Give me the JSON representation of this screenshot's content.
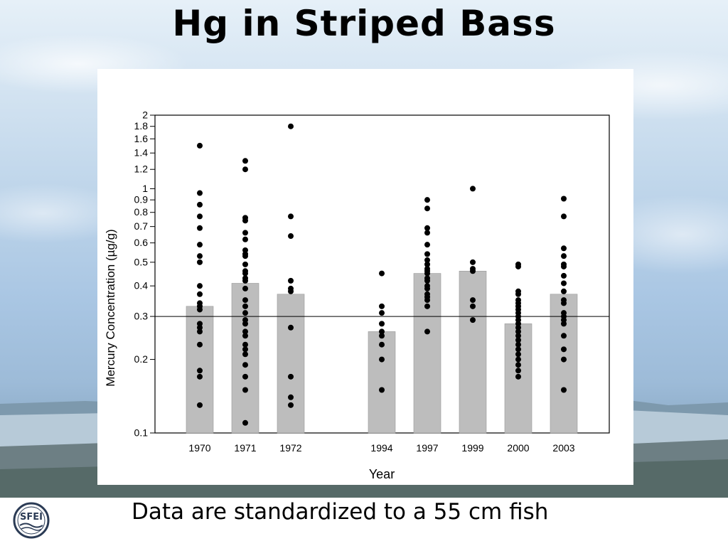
{
  "slide": {
    "title": "Hg in Striped Bass",
    "footnote": "Data are standardized to a 55 cm fish",
    "logo_text": "SFEI"
  },
  "colors": {
    "bar_fill": "#bdbdbd",
    "bar_stroke": "#9a9a9a",
    "point": "#000000",
    "reference_line": "#000000"
  },
  "chart_data": {
    "type": "bar",
    "title": "",
    "xlabel": "Year",
    "ylabel": "Mercury Concentration (µg/g)",
    "yscale": "log",
    "ylim": [
      0.1,
      2
    ],
    "yticks": [
      {
        "value": 0.1,
        "label": "0.1"
      },
      {
        "value": 0.2,
        "label": "0.2"
      },
      {
        "value": 0.3,
        "label": "0.3"
      },
      {
        "value": 0.4,
        "label": "0.4"
      },
      {
        "value": 0.5,
        "label": "0.5"
      },
      {
        "value": 0.6,
        "label": "0.6"
      },
      {
        "value": 0.7,
        "label": "0.7"
      },
      {
        "value": 0.8,
        "label": "0.8"
      },
      {
        "value": 0.9,
        "label": "0.9"
      },
      {
        "value": 1,
        "label": "1"
      },
      {
        "value": 1.2,
        "label": "1.2"
      },
      {
        "value": 1.4,
        "label": "1.4"
      },
      {
        "value": 1.6,
        "label": "1.6"
      },
      {
        "value": 1.8,
        "label": "1.8"
      },
      {
        "value": 2,
        "label": "2"
      }
    ],
    "reference_line": 0.3,
    "grid": false,
    "categories": [
      "1970",
      "1971",
      "1972",
      "1994",
      "1997",
      "1999",
      "2000",
      "2003"
    ],
    "values": [
      0.33,
      0.41,
      0.37,
      0.26,
      0.45,
      0.46,
      0.28,
      0.37
    ],
    "points": [
      [
        1.5,
        0.96,
        0.86,
        0.77,
        0.69,
        0.59,
        0.53,
        0.5,
        0.4,
        0.37,
        0.34,
        0.33,
        0.32,
        0.28,
        0.27,
        0.26,
        0.23,
        0.18,
        0.17,
        0.13
      ],
      [
        1.3,
        1.2,
        0.76,
        0.74,
        0.66,
        0.62,
        0.56,
        0.54,
        0.53,
        0.49,
        0.46,
        0.45,
        0.43,
        0.42,
        0.39,
        0.35,
        0.33,
        0.31,
        0.29,
        0.28,
        0.26,
        0.25,
        0.23,
        0.22,
        0.21,
        0.19,
        0.17,
        0.15,
        0.11
      ],
      [
        1.8,
        0.77,
        0.64,
        0.42,
        0.39,
        0.38,
        0.27,
        0.17,
        0.14,
        0.13
      ],
      [
        0.45,
        0.33,
        0.31,
        0.28,
        0.26,
        0.25,
        0.23,
        0.2,
        0.15
      ],
      [
        0.9,
        0.83,
        0.69,
        0.66,
        0.59,
        0.54,
        0.51,
        0.49,
        0.47,
        0.46,
        0.45,
        0.43,
        0.42,
        0.4,
        0.39,
        0.37,
        0.36,
        0.35,
        0.33,
        0.26
      ],
      [
        1.0,
        0.5,
        0.47,
        0.46,
        0.35,
        0.33,
        0.29
      ],
      [
        0.49,
        0.48,
        0.38,
        0.37,
        0.35,
        0.34,
        0.33,
        0.32,
        0.31,
        0.3,
        0.29,
        0.28,
        0.27,
        0.26,
        0.25,
        0.24,
        0.23,
        0.22,
        0.21,
        0.2,
        0.19,
        0.18,
        0.17
      ],
      [
        0.91,
        0.77,
        0.57,
        0.53,
        0.49,
        0.48,
        0.44,
        0.41,
        0.38,
        0.35,
        0.34,
        0.31,
        0.3,
        0.29,
        0.28,
        0.25,
        0.22,
        0.2,
        0.15
      ]
    ]
  }
}
